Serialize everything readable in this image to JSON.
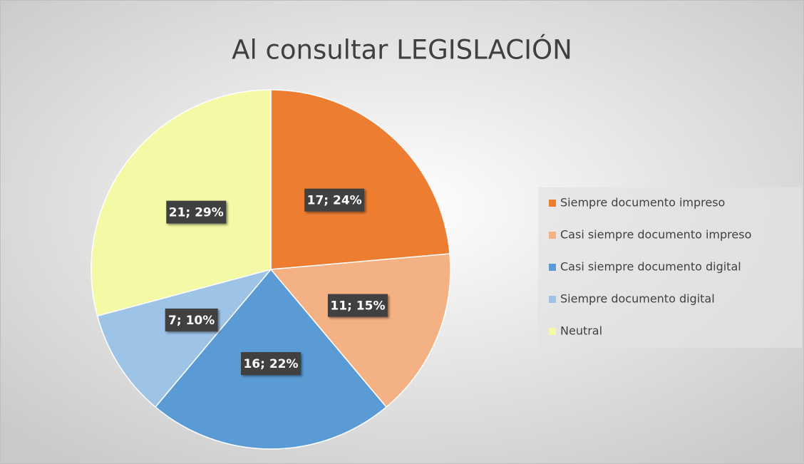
{
  "chart_data": {
    "type": "pie",
    "title": "Al consultar LEGISLACIÓN",
    "categories": [
      "Siempre documento impreso",
      "Casi siempre documento impreso",
      "Casi siempre documento digital",
      "Siempre documento digital",
      "Neutral"
    ],
    "values": [
      17,
      11,
      16,
      7,
      21
    ],
    "value_labels": [
      "17; 24%",
      "11; 15%",
      "16; 22%",
      "7; 10%",
      "21; 29%"
    ],
    "colors": [
      "#ed7d31",
      "#f4b183",
      "#5b9bd5",
      "#9dc3e6",
      "#f4f9a6"
    ],
    "legend": "right"
  }
}
